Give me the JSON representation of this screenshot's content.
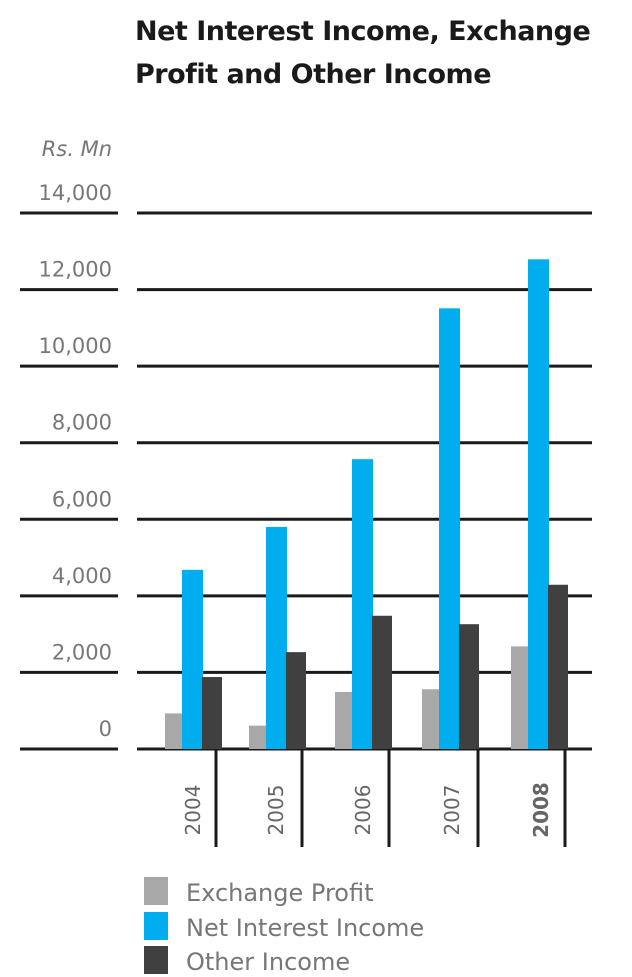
{
  "chart_data": {
    "type": "bar",
    "title": "Net Interest Income, Exchange Profit and Other Income",
    "ylabel": "Rs. Mn",
    "xlabel": "",
    "categories": [
      "2004",
      "2005",
      "2006",
      "2007",
      "2008"
    ],
    "highlighted_category": "2008",
    "ylim": [
      0,
      14000
    ],
    "yticks": [
      "0",
      "2,000",
      "4,000",
      "6,000",
      "8,000",
      "10,000",
      "12,000",
      "14,000"
    ],
    "ytick_values": [
      0,
      2000,
      4000,
      6000,
      8000,
      10000,
      12000,
      14000
    ],
    "grid": true,
    "legend_position": "bottom",
    "series": [
      {
        "name": "Exchange Profit",
        "color": "#A8A8A8",
        "values": [
          930,
          610,
          1490,
          1560,
          2680
        ]
      },
      {
        "name": "Net Interest Income",
        "color": "#00AEEF",
        "values": [
          4680,
          5800,
          7570,
          11510,
          12790
        ]
      },
      {
        "name": "Other Income",
        "color": "#404040",
        "values": [
          1880,
          2530,
          3480,
          3260,
          4290
        ]
      }
    ]
  }
}
